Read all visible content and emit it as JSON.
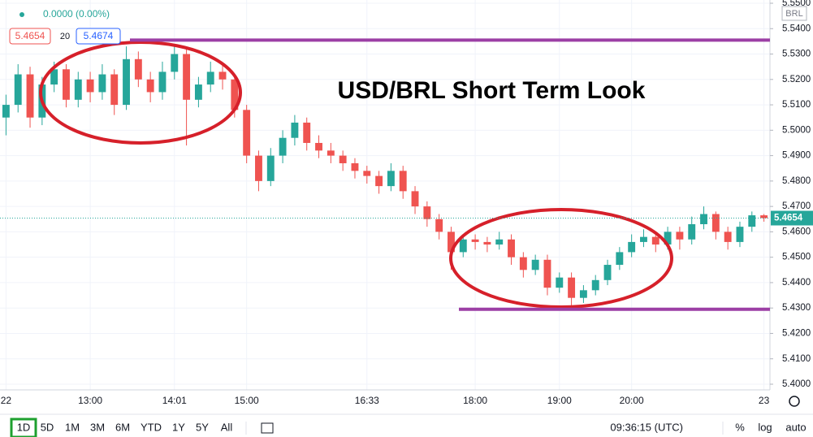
{
  "chart_data": {
    "type": "candlestick",
    "title": "USD/BRL Short Term Look",
    "categories": [
      "22",
      null,
      null,
      null,
      null,
      null,
      null,
      "13:00",
      null,
      null,
      null,
      null,
      null,
      null,
      "14:01",
      null,
      null,
      null,
      null,
      null,
      "15:00",
      null,
      null,
      null,
      null,
      null,
      null,
      null,
      null,
      null,
      "16:33",
      null,
      null,
      null,
      null,
      null,
      null,
      null,
      null,
      "18:00",
      null,
      null,
      null,
      null,
      null,
      null,
      "19:00",
      null,
      null,
      null,
      null,
      null,
      "20:00",
      null,
      null,
      null,
      null,
      null,
      null,
      null,
      null,
      null,
      null,
      "23"
    ],
    "series": {
      "up_color": "#26a69a",
      "down_color": "#ef5350",
      "open": [
        5.505,
        5.51,
        5.522,
        5.505,
        5.518,
        5.524,
        5.512,
        5.52,
        5.515,
        5.522,
        5.51,
        5.528,
        5.52,
        5.515,
        5.523,
        5.53,
        5.512,
        5.518,
        5.523,
        5.52,
        5.508,
        5.49,
        5.48,
        5.49,
        5.497,
        5.503,
        5.495,
        5.492,
        5.49,
        5.487,
        5.484,
        5.482,
        5.478,
        5.484,
        5.476,
        5.47,
        5.465,
        5.46,
        5.452,
        5.457,
        5.456,
        5.455,
        5.457,
        5.45,
        5.445,
        5.449,
        5.438,
        5.442,
        5.434,
        5.437,
        5.441,
        5.447,
        5.452,
        5.456,
        5.458,
        5.455,
        5.46,
        5.457,
        5.463,
        5.467,
        5.46,
        5.456,
        5.462,
        5.4665
      ],
      "high": [
        5.514,
        5.526,
        5.525,
        5.521,
        5.527,
        5.526,
        5.523,
        5.523,
        5.526,
        5.524,
        5.533,
        5.531,
        5.523,
        5.527,
        5.533,
        5.532,
        5.521,
        5.527,
        5.526,
        5.522,
        5.51,
        5.492,
        5.493,
        5.5,
        5.506,
        5.505,
        5.498,
        5.495,
        5.492,
        5.489,
        5.486,
        5.484,
        5.487,
        5.486,
        5.478,
        5.472,
        5.467,
        5.462,
        5.459,
        5.459,
        5.458,
        5.46,
        5.459,
        5.452,
        5.451,
        5.451,
        5.444,
        5.444,
        5.439,
        5.443,
        5.449,
        5.454,
        5.459,
        5.461,
        5.46,
        5.462,
        5.462,
        5.466,
        5.47,
        5.468,
        5.462,
        5.464,
        5.468,
        5.467
      ],
      "low": [
        5.498,
        5.507,
        5.501,
        5.502,
        5.515,
        5.509,
        5.509,
        5.511,
        5.512,
        5.506,
        5.508,
        5.517,
        5.511,
        5.512,
        5.52,
        5.494,
        5.509,
        5.515,
        5.516,
        5.505,
        5.487,
        5.476,
        5.478,
        5.487,
        5.494,
        5.492,
        5.489,
        5.487,
        5.484,
        5.481,
        5.479,
        5.475,
        5.476,
        5.473,
        5.467,
        5.462,
        5.457,
        5.445,
        5.45,
        5.453,
        5.452,
        5.453,
        5.447,
        5.442,
        5.443,
        5.435,
        5.436,
        5.431,
        5.432,
        5.435,
        5.439,
        5.445,
        5.45,
        5.454,
        5.452,
        5.453,
        5.453,
        5.455,
        5.461,
        5.457,
        5.453,
        5.454,
        5.46,
        5.464
      ],
      "close": [
        5.51,
        5.522,
        5.505,
        5.518,
        5.524,
        5.512,
        5.52,
        5.515,
        5.522,
        5.51,
        5.528,
        5.52,
        5.515,
        5.523,
        5.53,
        5.512,
        5.518,
        5.523,
        5.52,
        5.508,
        5.49,
        5.48,
        5.49,
        5.497,
        5.503,
        5.495,
        5.492,
        5.49,
        5.487,
        5.484,
        5.482,
        5.478,
        5.484,
        5.476,
        5.47,
        5.465,
        5.46,
        5.452,
        5.457,
        5.456,
        5.455,
        5.457,
        5.45,
        5.445,
        5.449,
        5.438,
        5.442,
        5.434,
        5.437,
        5.441,
        5.447,
        5.452,
        5.456,
        5.458,
        5.455,
        5.46,
        5.457,
        5.463,
        5.467,
        5.46,
        5.456,
        5.462,
        5.4665,
        5.4654
      ]
    },
    "ylim": [
      5.4,
      5.55
    ],
    "yticks": [
      {
        "value": 5.4,
        "label": "5.4000"
      },
      {
        "value": 5.41,
        "label": "5.4100"
      },
      {
        "value": 5.42,
        "label": "5.4200"
      },
      {
        "value": 5.43,
        "label": "5.4300"
      },
      {
        "value": 5.44,
        "label": "5.4400"
      },
      {
        "value": 5.45,
        "label": "5.4500"
      },
      {
        "value": 5.46,
        "label": "5.4600"
      },
      {
        "value": 5.47,
        "label": "5.4700"
      },
      {
        "value": 5.48,
        "label": "5.4800"
      },
      {
        "value": 5.49,
        "label": "5.4900"
      },
      {
        "value": 5.5,
        "label": "5.5000"
      },
      {
        "value": 5.51,
        "label": "5.5100"
      },
      {
        "value": 5.52,
        "label": "5.5200"
      },
      {
        "value": 5.53,
        "label": "5.5300"
      },
      {
        "value": 5.54,
        "label": "5.5400"
      },
      {
        "value": 5.55,
        "label": "5.5500"
      }
    ],
    "grid": true,
    "last_price": 5.4654,
    "currency": "BRL",
    "hlines": [
      {
        "value": 5.5355,
        "color": "#9c3fa5"
      },
      {
        "value": 5.4295,
        "color": "#9c3fa5"
      }
    ]
  },
  "header": {
    "change": "0.0000 (0.00%)",
    "price": "5.4654",
    "ma_length": "20",
    "ma_value": "5.4674"
  },
  "toolbar": {
    "periods": [
      "1D",
      "5D",
      "1M",
      "3M",
      "6M",
      "YTD",
      "1Y",
      "5Y",
      "All"
    ],
    "clock": "09:36:15 (UTC)",
    "percent": "%",
    "log": "log",
    "auto": "auto"
  }
}
